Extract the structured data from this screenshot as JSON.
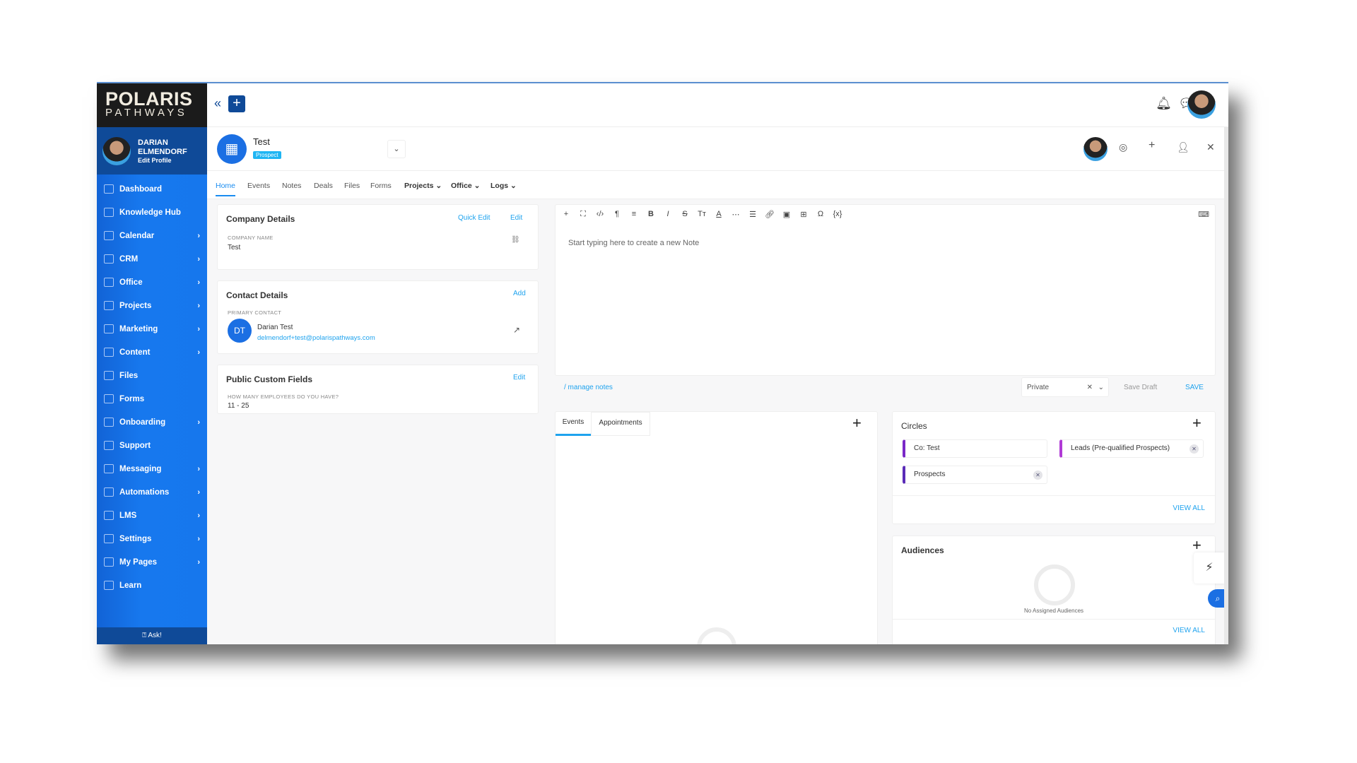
{
  "brand": {
    "line1": "POLARIS",
    "line2": "PATHWAYS"
  },
  "user": {
    "first": "DARIAN",
    "last": "ELMENDORF",
    "edit": "Edit Profile"
  },
  "nav": [
    {
      "label": "Dashboard",
      "chev": false
    },
    {
      "label": "Knowledge Hub",
      "chev": false
    },
    {
      "label": "Calendar",
      "chev": true
    },
    {
      "label": "CRM",
      "chev": true
    },
    {
      "label": "Office",
      "chev": true
    },
    {
      "label": "Projects",
      "chev": true
    },
    {
      "label": "Marketing",
      "chev": true
    },
    {
      "label": "Content",
      "chev": true
    },
    {
      "label": "Files",
      "chev": false
    },
    {
      "label": "Forms",
      "chev": false
    },
    {
      "label": "Onboarding",
      "chev": true
    },
    {
      "label": "Support",
      "chev": false
    },
    {
      "label": "Messaging",
      "chev": true
    },
    {
      "label": "Automations",
      "chev": true
    },
    {
      "label": "LMS",
      "chev": true
    },
    {
      "label": "Settings",
      "chev": true
    },
    {
      "label": "My Pages",
      "chev": true
    },
    {
      "label": "Learn",
      "chev": false
    }
  ],
  "ask": "Ask!",
  "record": {
    "name": "Test",
    "badge": "Prospect"
  },
  "tabs": [
    "Home",
    "Events",
    "Notes",
    "Deals",
    "Files",
    "Forms",
    "Projects",
    "Office",
    "Logs"
  ],
  "company": {
    "title": "Company Details",
    "quick_edit": "Quick Edit",
    "edit": "Edit",
    "label": "COMPANY NAME",
    "value": "Test"
  },
  "contact": {
    "title": "Contact Details",
    "add": "Add",
    "label": "PRIMARY CONTACT",
    "initials": "DT",
    "name": "Darian Test",
    "email": "delmendorf+test@polarispathways.com"
  },
  "custom": {
    "title": "Public Custom Fields",
    "edit": "Edit",
    "label": "HOW MANY EMPLOYEES DO YOU HAVE?",
    "value": "11 - 25"
  },
  "editor": {
    "placeholder": "Start typing here to create a new Note",
    "manage": "/ manage notes",
    "visibility": "Private",
    "save_draft": "Save Draft",
    "save": "SAVE"
  },
  "events": {
    "tabs": [
      "Events",
      "Appointments"
    ]
  },
  "circles": {
    "title": "Circles",
    "items": [
      "Co: Test",
      "Leads (Pre-qualified Prospects)",
      "Prospects"
    ],
    "view_all": "VIEW ALL"
  },
  "audiences": {
    "title": "Audiences",
    "empty": "No Assigned Audiences",
    "view_all": "VIEW ALL"
  },
  "colors": {
    "sidebar": "#1677ed",
    "accent": "#1fa3ee",
    "brand_dark": "#0f4a98"
  }
}
